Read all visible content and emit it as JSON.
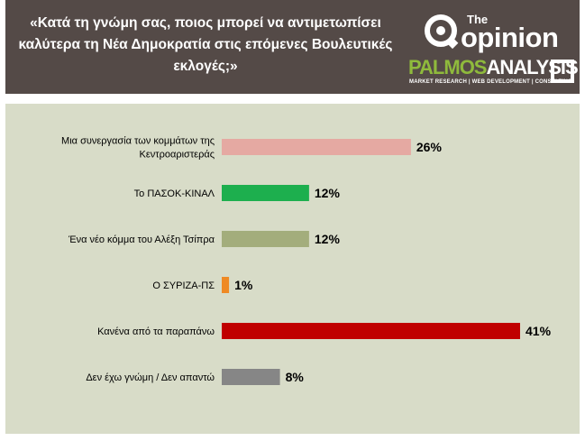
{
  "header": {
    "question": "«Κατά τη γνώμη σας, ποιος μπορεί να αντιμετωπίσει καλύτερα τη Νέα Δημοκρατία στις επόμενες Βουλευτικές εκλογές;»",
    "brand_the": "The",
    "brand_opinion": "opinion",
    "palmos_word": "PALMOS",
    "analysis_word": "ANALYSIS",
    "palmos_tagline": "MARKET RESEARCH | WEB DEVELOPMENT | CONSULTING"
  },
  "chart_data": {
    "type": "bar",
    "orientation": "horizontal",
    "categories": [
      "Μια συνεργασία των κομμάτων της Κεντροαριστεράς",
      "Το ΠΑΣΟΚ-ΚΙΝΑΛ",
      "Ένα νέο κόμμα του Αλέξη Τσίπρα",
      "Ο ΣΥΡΙΖΑ-ΠΣ",
      "Κανένα από τα παραπάνω",
      "Δεν έχω γνώμη / Δεν απαντώ"
    ],
    "values": [
      26,
      12,
      12,
      1,
      41,
      8
    ],
    "value_labels": [
      "26%",
      "12%",
      "12%",
      "1%",
      "41%",
      "8%"
    ],
    "colors": [
      "#e5a9a2",
      "#1daf4e",
      "#a3ad7c",
      "#ef8a24",
      "#c00000",
      "#868686"
    ],
    "xlim": [
      0,
      41
    ],
    "grid": false,
    "legend": "none"
  }
}
